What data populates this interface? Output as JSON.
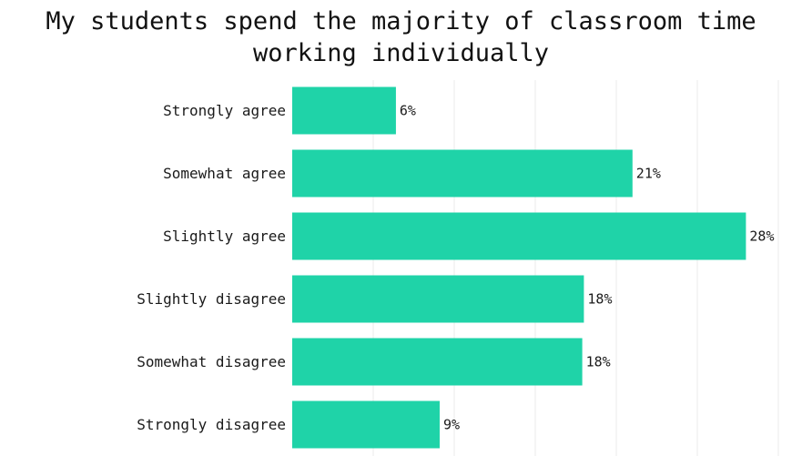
{
  "chart_data": {
    "type": "bar",
    "orientation": "horizontal",
    "title": "My students spend the majority of classroom time working individually",
    "categories": [
      "Strongly agree",
      "Somewhat agree",
      "Slightly agree",
      "Slightly disagree",
      "Somewhat disagree",
      "Strongly disagree"
    ],
    "values": [
      6.4,
      21,
      28,
      18,
      17.9,
      9.1
    ],
    "value_labels": [
      "6%",
      "21%",
      "28%",
      "18%",
      "18%",
      "9%"
    ],
    "xlim": [
      0,
      30
    ],
    "grid": true,
    "legend": "none",
    "colors": {
      "bar": "#1fd3a8"
    }
  }
}
